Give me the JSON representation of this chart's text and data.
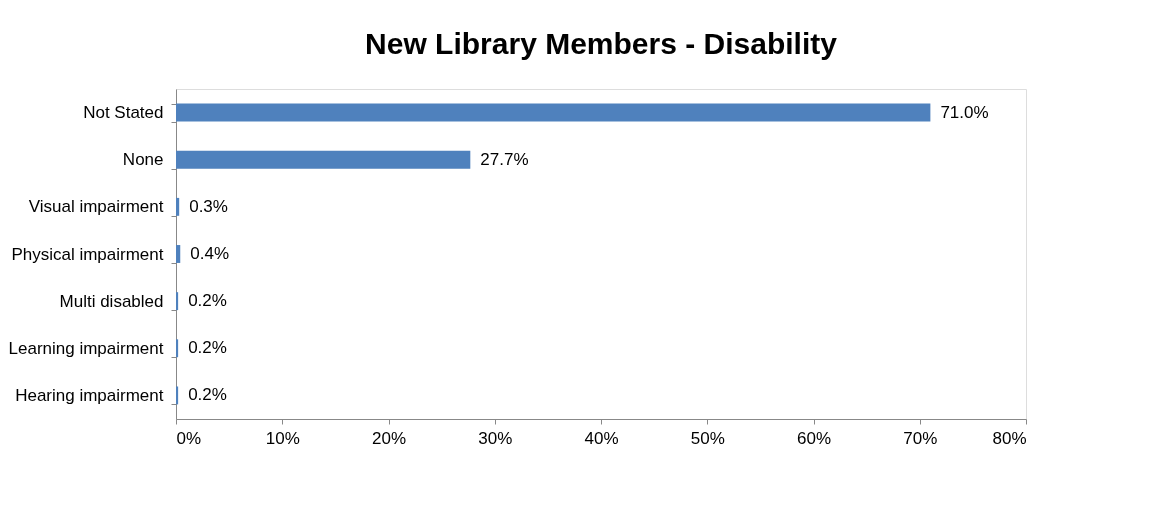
{
  "chart_data": {
    "type": "bar",
    "orientation": "horizontal",
    "title": "New Library Members - Disability",
    "categories": [
      "Not Stated",
      "None",
      "Visual impairment",
      "Physical impairment",
      "Multi disabled",
      "Learning impairment",
      "Hearing impairment"
    ],
    "values": [
      71.0,
      27.7,
      0.3,
      0.4,
      0.2,
      0.2,
      0.2
    ],
    "value_labels": [
      "71.0%",
      "27.7%",
      "0.3%",
      "0.4%",
      "0.2%",
      "0.2%",
      "0.2%"
    ],
    "color": "#4f81bd",
    "xlim": [
      0,
      80
    ],
    "xticks": [
      {
        "value": 0,
        "label": "0%"
      },
      {
        "value": 10,
        "label": "10%"
      },
      {
        "value": 20,
        "label": "20%"
      },
      {
        "value": 30,
        "label": "30%"
      },
      {
        "value": 40,
        "label": "40%"
      },
      {
        "value": 50,
        "label": "50%"
      },
      {
        "value": 60,
        "label": "60%"
      },
      {
        "value": 70,
        "label": "70%"
      },
      {
        "value": 80,
        "label": "80%"
      }
    ],
    "grid": false
  }
}
